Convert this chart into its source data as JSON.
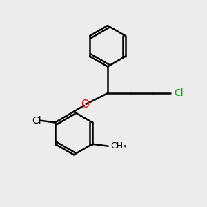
{
  "background_color": "#ececec",
  "bond_color": "#000000",
  "atom_colors": {
    "O": "#ff0000",
    "Cl_green": "#00aa00",
    "Cl_black": "#000000",
    "C": "#000000",
    "CH3": "#000000"
  },
  "line_width": 1.8,
  "figsize": [
    3.0,
    3.0
  ],
  "dpi": 100
}
